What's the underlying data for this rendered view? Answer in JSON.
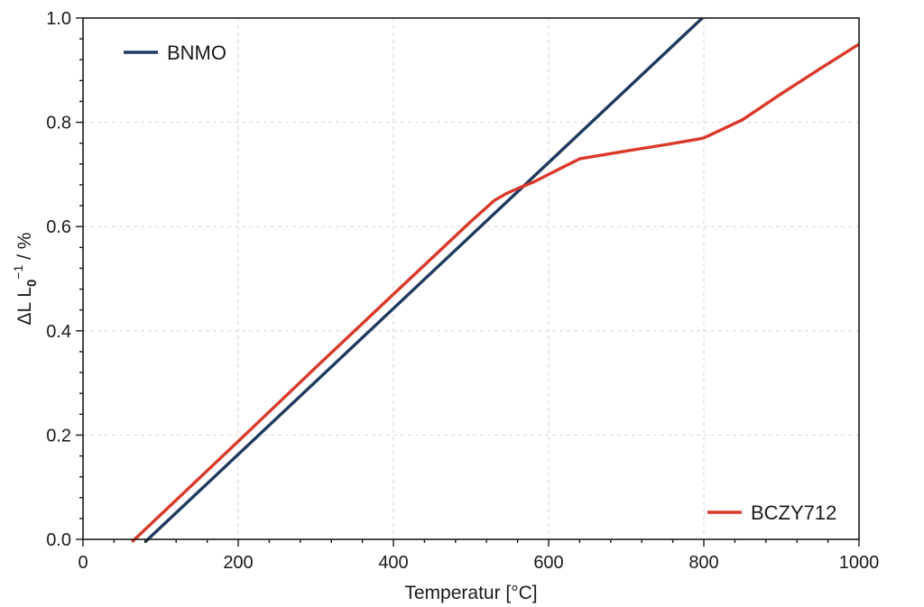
{
  "chart_data": {
    "type": "line",
    "xlabel": "Temperatur [°C]",
    "ylabel": {
      "prefix": "ΔL L",
      "subscript": "0",
      "superscript": "−1",
      "suffix": " / %"
    },
    "xlim": [
      0,
      1000
    ],
    "ylim": [
      0.0,
      1.0
    ],
    "xticks": [
      0,
      200,
      400,
      600,
      800,
      1000
    ],
    "yticks": [
      0.0,
      0.2,
      0.4,
      0.6,
      0.8,
      1.0
    ],
    "xtick_labels": [
      "0",
      "200",
      "400",
      "600",
      "800",
      "1000"
    ],
    "ytick_labels": [
      "0.0",
      "0.2",
      "0.4",
      "0.6",
      "0.8",
      "1.0"
    ],
    "grid": true,
    "series": [
      {
        "name": "BNMO",
        "color": "#1f3a5f",
        "legend_position": "top-left",
        "points": [
          [
            80,
            -0.005
          ],
          [
            798,
            1.0
          ]
        ]
      },
      {
        "name": "BCZY712",
        "color": "#d9392b",
        "legend_position": "bottom-right",
        "points": [
          [
            63,
            -0.005
          ],
          [
            200,
            0.188
          ],
          [
            300,
            0.33
          ],
          [
            400,
            0.47
          ],
          [
            500,
            0.61
          ],
          [
            530,
            0.65
          ],
          [
            545,
            0.663
          ],
          [
            560,
            0.673
          ],
          [
            580,
            0.685
          ],
          [
            600,
            0.7
          ],
          [
            620,
            0.715
          ],
          [
            640,
            0.73
          ],
          [
            660,
            0.735
          ],
          [
            700,
            0.745
          ],
          [
            750,
            0.757
          ],
          [
            790,
            0.767
          ],
          [
            800,
            0.77
          ],
          [
            810,
            0.777
          ],
          [
            850,
            0.805
          ],
          [
            900,
            0.855
          ],
          [
            950,
            0.903
          ],
          [
            1000,
            0.95
          ]
        ]
      }
    ]
  }
}
